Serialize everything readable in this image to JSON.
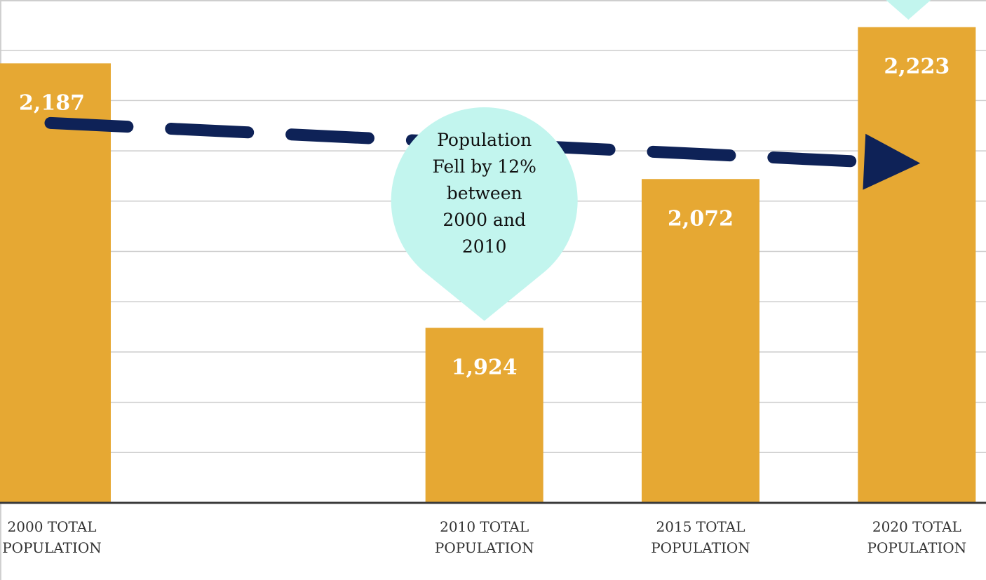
{
  "colors": {
    "bar": "#E6A833",
    "trend": "#0E2257",
    "callout": "#C2F5EE",
    "grid": "#CCCCCC",
    "axis": "#3A3A3A",
    "background": "#FFFFFF"
  },
  "chart_data": {
    "type": "bar",
    "categories": [
      "2000 TOTAL POPULATION",
      "2010 TOTAL POPULATION",
      "2015 TOTAL POPULATION",
      "2020 TOTAL POPULATION"
    ],
    "category_lines": [
      [
        "2000 TOTAL",
        "POPULATION"
      ],
      [
        "2010 TOTAL",
        "POPULATION"
      ],
      [
        "2015 TOTAL",
        "POPULATION"
      ],
      [
        "2020 TOTAL",
        "POPULATION"
      ]
    ],
    "x_positions": [
      2000,
      2010,
      2015,
      2020
    ],
    "values": [
      2187,
      1924,
      2072,
      2223
    ],
    "value_labels": [
      "2,187",
      "1,924",
      "2,072",
      "2,223"
    ],
    "ylim": [
      1750,
      2250
    ],
    "y_gridlines": [
      1800,
      1850,
      1900,
      1950,
      2000,
      2050,
      2100,
      2150,
      2200,
      2250
    ],
    "grid": true,
    "title": "",
    "xlabel": "",
    "ylabel": "",
    "trend_line": {
      "style": "dashed-arrow",
      "direction": "right"
    },
    "annotations": [
      {
        "text_lines": [
          "Population",
          "Fell by 12%",
          "between",
          "2000 and",
          "2010"
        ],
        "points_to": "2010 TOTAL POPULATION"
      }
    ]
  }
}
